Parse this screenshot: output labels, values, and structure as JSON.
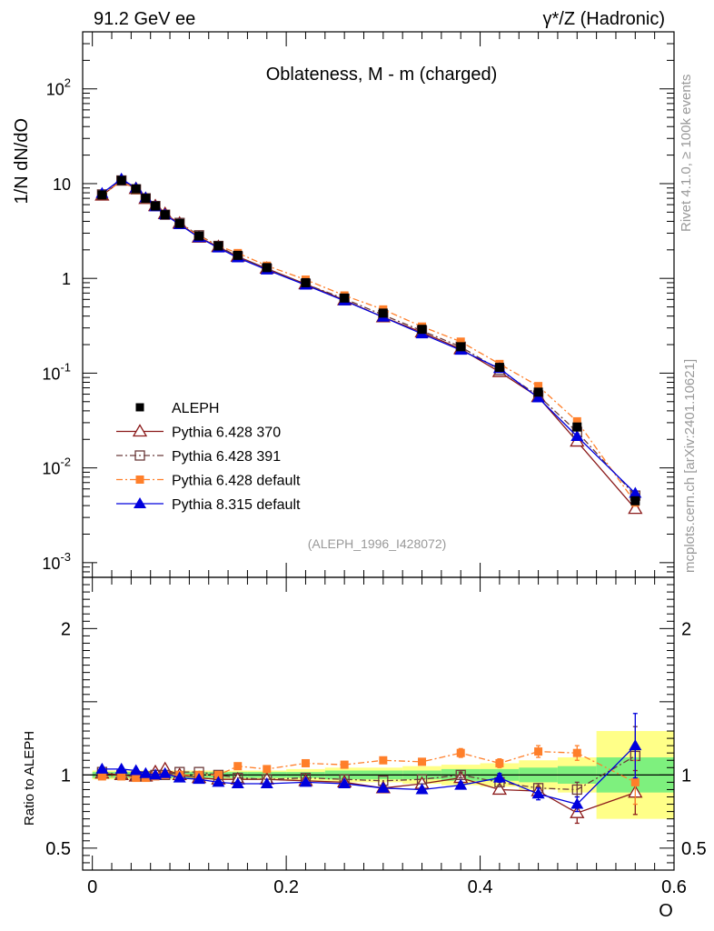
{
  "header": {
    "left": "91.2 GeV ee",
    "right": "γ*/Z (Hadronic)"
  },
  "side_labels": {
    "rivet": "Rivet 4.1.0, ≥ 100k events",
    "mcplots": "mcplots.cern.ch [arXiv:2401.10621]"
  },
  "colors": {
    "aleph": "#000000",
    "p370": "#8b1a1a",
    "p391": "#6b3a3a",
    "pdefault": "#ff7f2a",
    "p8": "#0000dd",
    "band_green": "#7ef07e",
    "band_yellow": "#ffff88"
  },
  "chart_data": [
    {
      "type": "line",
      "title": "Oblateness, M - m (charged)",
      "ylabel": "1/N  dN/dO",
      "yscale": "log",
      "ylim": [
        0.0007,
        400
      ],
      "xlim": [
        -0.01,
        0.6
      ],
      "y_ticks": [
        {
          "v": 0.001,
          "m": "10",
          "e": "-3"
        },
        {
          "v": 0.01,
          "m": "10",
          "e": "-2"
        },
        {
          "v": 0.1,
          "m": "10",
          "e": "-1"
        },
        {
          "v": 1,
          "m": "1",
          "e": ""
        },
        {
          "v": 10,
          "m": "10",
          "e": ""
        },
        {
          "v": 100,
          "m": "10",
          "e": "2"
        }
      ],
      "annotation": "(ALEPH_1996_I428072)",
      "x": [
        0.01,
        0.03,
        0.045,
        0.055,
        0.065,
        0.075,
        0.09,
        0.11,
        0.13,
        0.15,
        0.18,
        0.22,
        0.26,
        0.3,
        0.34,
        0.38,
        0.42,
        0.46,
        0.5,
        0.56
      ],
      "data": {
        "name": "ALEPH",
        "values": [
          7.6,
          10.8,
          8.8,
          7.0,
          5.8,
          4.7,
          3.8,
          2.8,
          2.2,
          1.75,
          1.3,
          0.9,
          0.62,
          0.43,
          0.29,
          0.19,
          0.115,
          0.063,
          0.027,
          0.0045
        ]
      },
      "series": [
        {
          "name": "Pythia 6.428 370",
          "key": "p370",
          "marker": "triangle-open",
          "dash": "",
          "values": [
            7.5,
            10.8,
            8.8,
            6.9,
            5.8,
            4.8,
            3.8,
            2.7,
            2.15,
            1.7,
            1.27,
            0.87,
            0.59,
            0.39,
            0.27,
            0.18,
            0.103,
            0.056,
            0.019,
            0.0037
          ]
        },
        {
          "name": "Pythia 6.428 391",
          "key": "p391",
          "marker": "square-open",
          "dash": "7,3,2,3",
          "values": [
            7.7,
            10.8,
            8.7,
            7.0,
            5.8,
            4.7,
            3.85,
            2.85,
            2.2,
            1.7,
            1.26,
            0.87,
            0.61,
            0.41,
            0.28,
            0.19,
            0.108,
            0.058,
            0.024,
            0.0051
          ]
        },
        {
          "name": "Pythia 6.428 default",
          "key": "pdefault",
          "marker": "square-filled",
          "dash": "7,3,2,3",
          "values": [
            7.5,
            10.7,
            8.6,
            6.9,
            5.7,
            4.7,
            3.8,
            2.8,
            2.2,
            1.85,
            1.36,
            0.97,
            0.66,
            0.47,
            0.31,
            0.215,
            0.125,
            0.073,
            0.031,
            0.0043
          ]
        },
        {
          "name": "Pythia 8.315 default",
          "key": "p8",
          "marker": "triangle-filled",
          "dash": "",
          "values": [
            7.9,
            11.2,
            9.0,
            7.1,
            5.7,
            4.7,
            3.7,
            2.7,
            2.1,
            1.65,
            1.23,
            0.85,
            0.58,
            0.39,
            0.26,
            0.175,
            0.112,
            0.055,
            0.0215,
            0.0054
          ]
        }
      ]
    },
    {
      "type": "line",
      "ylabel": "Ratio to ALEPH",
      "ylim": [
        0.35,
        2.35
      ],
      "xlim": [
        -0.01,
        0.6
      ],
      "y_ticks": [
        0.5,
        1,
        2
      ],
      "x_ticks": [
        0,
        0.2,
        0.4,
        0.6
      ],
      "x_tick_labels": [
        "0",
        "0.2",
        "0.4",
        "0.6"
      ],
      "xlabel": "O",
      "bands": {
        "edges": [
          0.0,
          0.02,
          0.04,
          0.05,
          0.06,
          0.07,
          0.08,
          0.1,
          0.12,
          0.14,
          0.16,
          0.2,
          0.24,
          0.28,
          0.32,
          0.36,
          0.4,
          0.44,
          0.48,
          0.52,
          0.6
        ],
        "green": [
          0.02,
          0.02,
          0.02,
          0.02,
          0.02,
          0.02,
          0.02,
          0.02,
          0.02,
          0.02,
          0.02,
          0.02,
          0.03,
          0.03,
          0.03,
          0.04,
          0.04,
          0.05,
          0.06,
          0.12
        ],
        "yellow": [
          0.03,
          0.03,
          0.03,
          0.03,
          0.03,
          0.03,
          0.03,
          0.03,
          0.03,
          0.03,
          0.03,
          0.04,
          0.05,
          0.05,
          0.06,
          0.07,
          0.08,
          0.1,
          0.12,
          0.3
        ]
      },
      "series": [
        {
          "name": "Pythia 6.428 370",
          "key": "p370",
          "values": [
            1.01,
            1.0,
            0.99,
            0.99,
            1.02,
            1.04,
            1.0,
            0.98,
            0.97,
            0.97,
            0.97,
            0.96,
            0.95,
            0.91,
            0.94,
            0.98,
            0.9,
            0.89,
            0.74,
            0.88
          ],
          "errors": [
            0.01,
            0.01,
            0.01,
            0.01,
            0.01,
            0.01,
            0.01,
            0.01,
            0.01,
            0.01,
            0.01,
            0.01,
            0.01,
            0.01,
            0.01,
            0.02,
            0.02,
            0.03,
            0.07,
            0.15
          ]
        },
        {
          "name": "Pythia 6.428 391",
          "key": "p391",
          "values": [
            1.02,
            1.0,
            0.99,
            0.99,
            1.0,
            1.0,
            1.02,
            1.02,
            1.0,
            0.98,
            0.97,
            0.98,
            0.97,
            0.96,
            0.97,
            1.0,
            0.95,
            0.91,
            0.9,
            1.13
          ],
          "errors": [
            0.01,
            0.01,
            0.01,
            0.01,
            0.01,
            0.01,
            0.01,
            0.01,
            0.01,
            0.01,
            0.01,
            0.01,
            0.01,
            0.01,
            0.01,
            0.02,
            0.02,
            0.03,
            0.05,
            0.2
          ]
        },
        {
          "name": "Pythia 6.428 default",
          "key": "pdefault",
          "values": [
            0.99,
            0.99,
            0.98,
            0.98,
            0.99,
            1.0,
            1.0,
            1.0,
            1.0,
            1.06,
            1.04,
            1.08,
            1.07,
            1.1,
            1.09,
            1.15,
            1.08,
            1.16,
            1.15,
            0.95
          ],
          "errors": [
            0.01,
            0.01,
            0.01,
            0.01,
            0.01,
            0.01,
            0.01,
            0.01,
            0.01,
            0.01,
            0.01,
            0.01,
            0.01,
            0.01,
            0.02,
            0.03,
            0.03,
            0.04,
            0.05,
            0.15
          ]
        },
        {
          "name": "Pythia 8.315 default",
          "key": "p8",
          "values": [
            1.04,
            1.04,
            1.03,
            1.01,
            1.0,
            1.01,
            0.98,
            0.97,
            0.95,
            0.94,
            0.94,
            0.95,
            0.94,
            0.91,
            0.9,
            0.93,
            0.98,
            0.87,
            0.8,
            1.2
          ],
          "errors": [
            0.01,
            0.01,
            0.01,
            0.01,
            0.01,
            0.01,
            0.01,
            0.01,
            0.01,
            0.01,
            0.01,
            0.01,
            0.01,
            0.01,
            0.01,
            0.02,
            0.03,
            0.04,
            0.05,
            0.22
          ]
        }
      ]
    }
  ]
}
